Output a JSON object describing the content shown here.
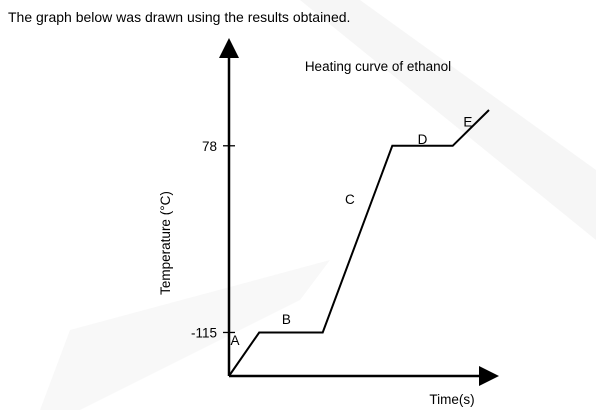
{
  "intro_text": "The graph below was drawn using the results obtained.",
  "colors": {
    "line": "#000000",
    "watermark": "#eeeeee"
  },
  "chart_data": {
    "type": "line",
    "title": "Heating curve of ethanol",
    "xlabel": "Time(s)",
    "ylabel": "Temperature (°C)",
    "y_ticks": [
      {
        "label": "-115",
        "value": -115
      },
      {
        "label": "78",
        "value": 78
      }
    ],
    "series": [
      {
        "x": [
          0,
          1,
          3.1,
          5.4,
          7.4,
          8.6
        ],
        "y": [
          -160,
          -115,
          -115,
          78,
          78,
          115
        ]
      }
    ],
    "segments": [
      {
        "label": "A",
        "at_x": 0.2,
        "at_y": -128
      },
      {
        "label": "B",
        "at_x": 1.9,
        "at_y": -106
      },
      {
        "label": "C",
        "at_x": 4.0,
        "at_y": 18
      },
      {
        "label": "D",
        "at_x": 6.4,
        "at_y": 80
      },
      {
        "label": "E",
        "at_x": 7.9,
        "at_y": 98
      }
    ],
    "xlim": [
      0,
      8.6
    ],
    "ylim": [
      -160,
      115
    ],
    "grid": false,
    "legend": "none"
  }
}
